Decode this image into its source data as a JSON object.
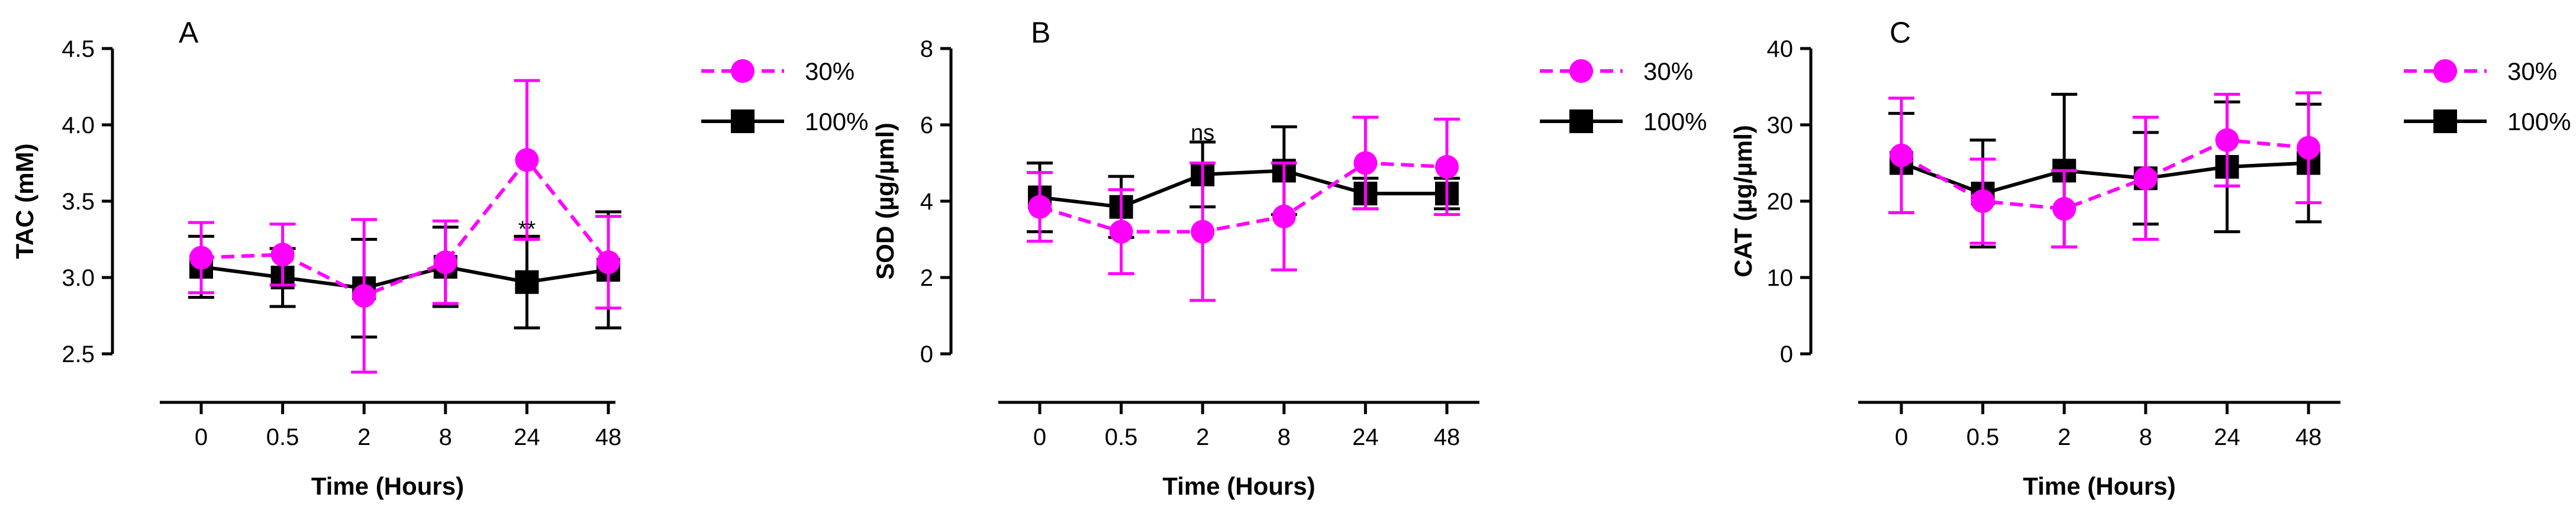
{
  "colors": {
    "series_30": "#ff00ff",
    "series_100": "#000000",
    "axis": "#000000"
  },
  "chart_data": [
    {
      "type": "line",
      "panel": "A",
      "title": "",
      "categories": [
        "0",
        "0.5",
        "2",
        "8",
        "24",
        "48"
      ],
      "xlabel": "Time (Hours)",
      "ylabel": "TAC (mM)",
      "ylim": [
        2.5,
        4.5
      ],
      "yticks": [
        "2.5",
        "3.0",
        "3.5",
        "4.0",
        "4.5"
      ],
      "grid": false,
      "legend": "right",
      "series": [
        {
          "name": "30%",
          "marker": "circle",
          "dash": true,
          "values": [
            3.13,
            3.15,
            2.88,
            3.1,
            3.77,
            3.1
          ],
          "err": [
            0.23,
            0.2,
            0.5,
            0.27,
            0.52,
            0.3
          ]
        },
        {
          "name": "100%",
          "marker": "square",
          "dash": false,
          "values": [
            3.07,
            3.0,
            2.93,
            3.07,
            2.97,
            3.05
          ],
          "err": [
            0.2,
            0.19,
            0.32,
            0.26,
            0.3,
            0.38
          ]
        }
      ],
      "annotations": [
        {
          "category": "24",
          "value": 3.27,
          "text": "**"
        }
      ]
    },
    {
      "type": "line",
      "panel": "B",
      "title": "",
      "categories": [
        "0",
        "0.5",
        "2",
        "8",
        "24",
        "48"
      ],
      "xlabel": "Time (Hours)",
      "ylabel": "SOD (µg/µml)",
      "ylim": [
        0,
        8
      ],
      "yticks": [
        "0",
        "2",
        "4",
        "6",
        "8"
      ],
      "grid": false,
      "legend": "right",
      "series": [
        {
          "name": "30%",
          "marker": "circle",
          "dash": true,
          "values": [
            3.85,
            3.2,
            3.2,
            3.6,
            5.0,
            4.9
          ],
          "err": [
            0.9,
            1.1,
            1.8,
            1.4,
            1.2,
            1.25
          ]
        },
        {
          "name": "100%",
          "marker": "square",
          "dash": false,
          "values": [
            4.1,
            3.85,
            4.7,
            4.8,
            4.2,
            4.2
          ],
          "err": [
            0.9,
            0.8,
            0.85,
            1.15,
            0.4,
            0.4
          ]
        }
      ],
      "annotations": [
        {
          "category": "2",
          "value": 5.6,
          "text": "ns"
        }
      ]
    },
    {
      "type": "line",
      "panel": "C",
      "title": "",
      "categories": [
        "0",
        "0.5",
        "2",
        "8",
        "24",
        "48"
      ],
      "xlabel": "Time (Hours)",
      "ylabel": "CAT (µg/µml)",
      "ylim": [
        0,
        40
      ],
      "yticks": [
        "0",
        "10",
        "20",
        "30",
        "40"
      ],
      "grid": false,
      "legend": "right",
      "series": [
        {
          "name": "30%",
          "marker": "circle",
          "dash": true,
          "values": [
            26.0,
            20.0,
            19.0,
            23.0,
            28.0,
            27.0
          ],
          "err": [
            7.5,
            5.5,
            5.0,
            8.0,
            6.0,
            7.2
          ]
        },
        {
          "name": "100%",
          "marker": "square",
          "dash": false,
          "values": [
            25.0,
            21.0,
            24.0,
            23.0,
            24.5,
            25.0
          ],
          "err": [
            6.5,
            7.0,
            10.0,
            6.0,
            8.5,
            7.7
          ]
        }
      ],
      "annotations": []
    }
  ]
}
